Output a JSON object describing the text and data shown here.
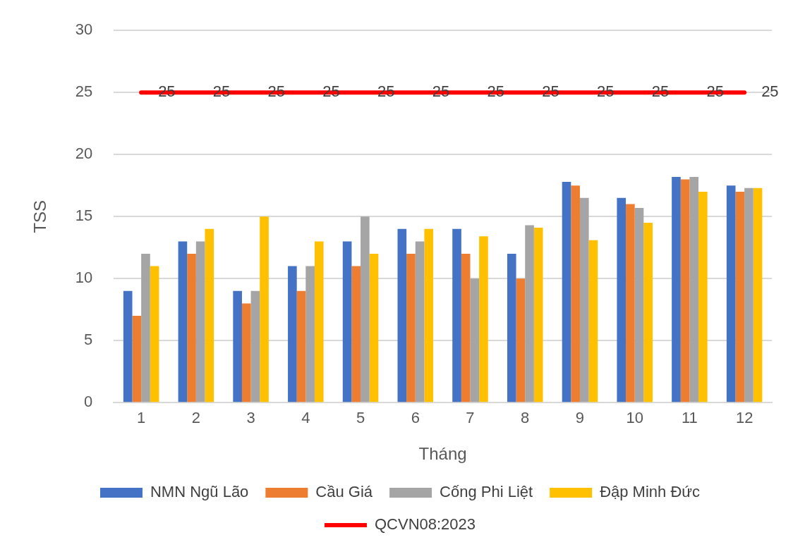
{
  "chart_data": {
    "type": "bar",
    "xlabel": "Tháng",
    "ylabel": "TSS",
    "categories": [
      "1",
      "2",
      "3",
      "4",
      "5",
      "6",
      "7",
      "8",
      "9",
      "10",
      "11",
      "12"
    ],
    "series": [
      {
        "name": "NMN Ngũ Lão",
        "color": "#4472c4",
        "values": [
          9,
          13,
          9,
          11,
          13,
          14,
          14,
          12,
          17.8,
          16.5,
          18.2,
          17.5
        ]
      },
      {
        "name": "Cầu Giá",
        "color": "#ed7d31",
        "values": [
          7,
          12,
          8,
          9,
          11,
          12,
          12,
          10,
          17.5,
          16.0,
          18.0,
          17.0
        ]
      },
      {
        "name": "Cống Phi Liệt",
        "color": "#a5a5a5",
        "values": [
          12,
          13,
          9,
          11,
          15,
          13,
          10,
          14.3,
          16.5,
          15.7,
          18.2,
          17.3
        ]
      },
      {
        "name": "Đập Minh Đức",
        "color": "#ffc000",
        "values": [
          11,
          14,
          15,
          13,
          12,
          14,
          13.4,
          14.1,
          13.1,
          14.5,
          17.0,
          17.3
        ]
      },
      {
        "name": "QCVN08:2023",
        "type": "line",
        "color": "#ff0000",
        "values": [
          25,
          25,
          25,
          25,
          25,
          25,
          25,
          25,
          25,
          25,
          25,
          25
        ],
        "value_labels": [
          "25",
          "25",
          "25",
          "25",
          "25",
          "25",
          "25",
          "25",
          "25",
          "25",
          "25",
          "25"
        ]
      }
    ],
    "ylim": [
      0,
      30
    ],
    "yticks": [
      0,
      5,
      10,
      15,
      20,
      25,
      30
    ],
    "grid": "y",
    "legend": "bottom",
    "marker": "none"
  }
}
